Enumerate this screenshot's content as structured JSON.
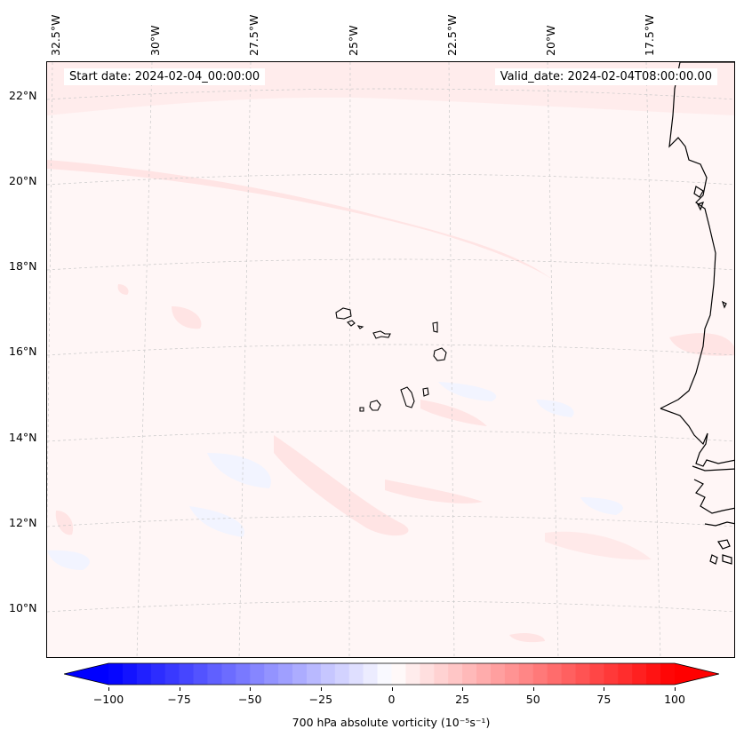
{
  "map": {
    "start_date": "Start date: 2024-02-04_00:00:00",
    "valid_date": "Valid_date: 2024-02-04T08:00:00.00",
    "lon_labels": [
      "32.5°W",
      "30°W",
      "27.5°W",
      "25°W",
      "22.5°W",
      "20°W",
      "17.5°W"
    ],
    "lat_labels": [
      "22°N",
      "20°N",
      "18°N",
      "16°N",
      "14°N",
      "12°N",
      "10°N"
    ],
    "field": "700 hPa absolute vorticity",
    "region": "Cabo Verde and West African coast (Senegal)"
  },
  "colorbar": {
    "label": "700 hPa absolute vorticity (10⁻⁵s⁻¹)",
    "ticks": [
      "−100",
      "−75",
      "−50",
      "−25",
      "0",
      "25",
      "50",
      "75",
      "100"
    ],
    "tick_values": [
      -100,
      -75,
      -50,
      -25,
      0,
      25,
      50,
      75,
      100
    ],
    "range": [
      -100,
      100
    ],
    "step": 5,
    "colormap": "bwr",
    "extend": "both"
  },
  "colors": {
    "background": "#fff6f6",
    "positive_tint": "#ffe4e4",
    "negative_tint": "#f2f4ff",
    "coast": "#000000",
    "grid": "#c8c8c8"
  }
}
